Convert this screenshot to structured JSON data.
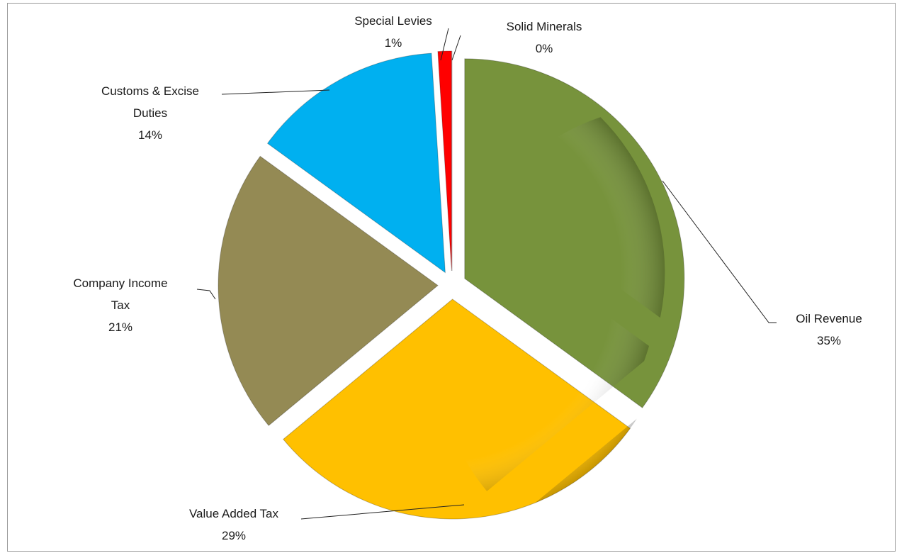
{
  "chart_data": {
    "type": "pie",
    "categories": [
      "Oil Revenue",
      "Value Added Tax",
      "Company Income Tax",
      "Customs & Excise Duties",
      "Special Levies",
      "Solid Minerals"
    ],
    "values": [
      35,
      29,
      21,
      14,
      1,
      0
    ],
    "value_labels": [
      "35%",
      "29%",
      "21%",
      "14%",
      "1%",
      "0%"
    ],
    "colors": [
      "#77933c",
      "#ffc000",
      "#948a54",
      "#00b0f0",
      "#ff0000",
      "#7f7f7f"
    ]
  }
}
